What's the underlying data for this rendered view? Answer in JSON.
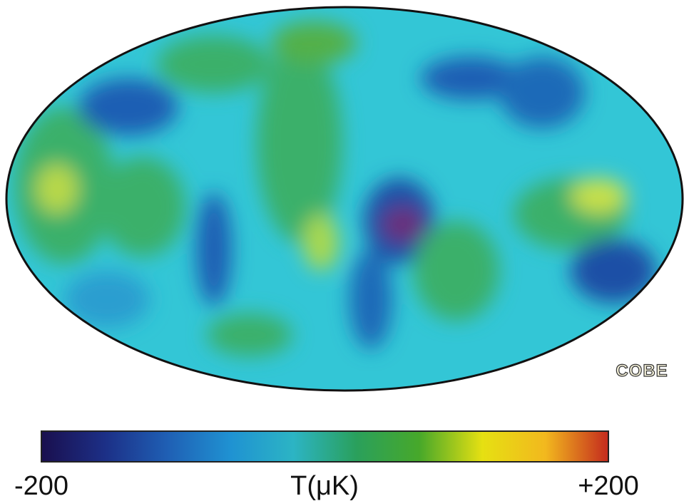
{
  "map": {
    "watermark": "COBE",
    "colorbar": {
      "label": "T(μK)",
      "lim": [
        -200,
        200
      ],
      "ticks": [
        -200,
        {
          "value": 200,
          "label": "+200"
        }
      ],
      "colormap": [
        "#1a0f4e",
        "#1c2f86",
        "#1f5fb4",
        "#1f92d2",
        "#2cb4c4",
        "#2aa05c",
        "#47a82a",
        "#e6e012",
        "#f2b81e",
        "#c42a1e"
      ]
    }
  }
}
